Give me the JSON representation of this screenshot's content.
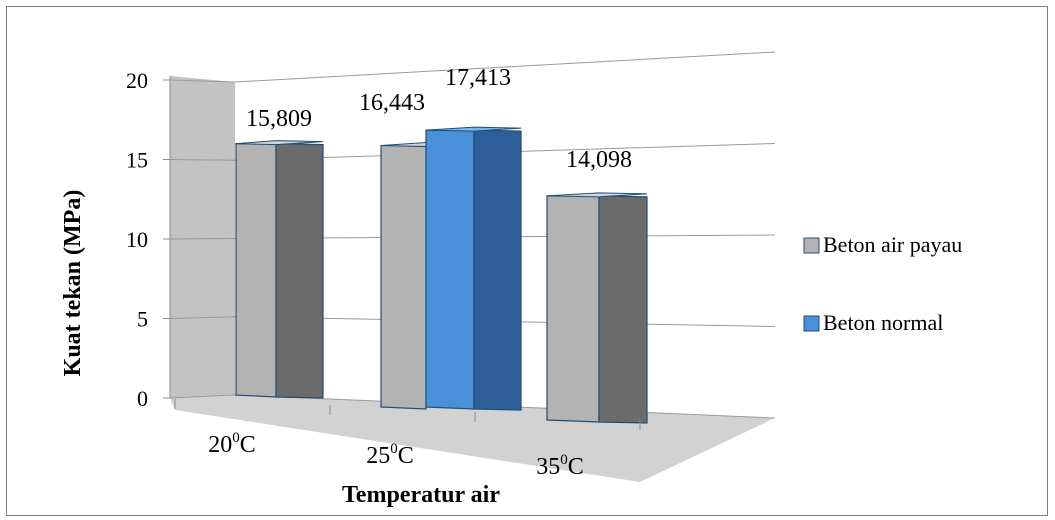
{
  "colors": {
    "payau_front": "#b3b3b3",
    "payau_side": "#6b6b6b",
    "payau_top": "#d4d4d4",
    "normal_front": "#4a90d9",
    "normal_side": "#2e5f9a",
    "normal_top": "#7cb5ec",
    "wall": "#bdbdbd",
    "floor": "#c9c9c9",
    "outline": "#1f4e79"
  },
  "chart_data": {
    "type": "bar",
    "title": "",
    "xlabel": "Temperatur air",
    "ylabel": "Kuat tekan (MPa)",
    "ylim": [
      0,
      20
    ],
    "yticks": [
      "0",
      "5",
      "10",
      "15",
      "20"
    ],
    "legend_position": "right",
    "categories": [
      {
        "sup": "0",
        "unit": "C",
        "value": "20"
      },
      {
        "sup": "0",
        "unit": "C",
        "value": "25"
      },
      {
        "sup": "0",
        "unit": "C",
        "value": "35"
      }
    ],
    "series": [
      {
        "name": "Beton air payau",
        "values": [
          15.809,
          16.443,
          14.098
        ],
        "labels": [
          "15,809",
          "16,443",
          "14,098"
        ]
      },
      {
        "name": "Beton normal",
        "values": [
          null,
          17.413,
          null
        ],
        "labels": [
          "",
          "17,413",
          ""
        ]
      }
    ]
  }
}
